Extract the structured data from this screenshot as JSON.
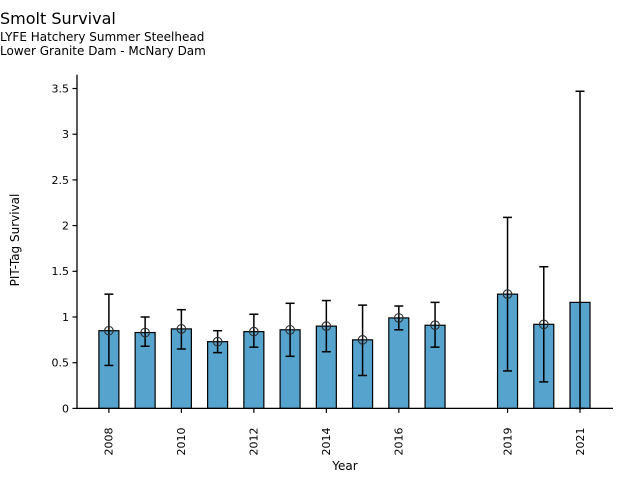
{
  "chart_data": {
    "type": "bar",
    "title": "Smolt Survival",
    "subtitles": [
      "LYFE Hatchery Summer Steelhead",
      "Lower Granite Dam - McNary Dam"
    ],
    "xlabel": "Year",
    "ylabel": "PIT-Tag Survival",
    "xlim": [
      2007.12,
      2021.91
    ],
    "ylim": [
      0,
      3.65
    ],
    "x_tick_years": [
      2008,
      2010,
      2012,
      2014,
      2016,
      2019,
      2021
    ],
    "x_tick_labels": [
      "2008",
      "2010",
      "2012",
      "2014",
      "2016",
      "2019",
      "2021"
    ],
    "y_tick_values": [
      0,
      0.5,
      1,
      1.5,
      2,
      2.5,
      3,
      3.5
    ],
    "y_tick_labels": [
      "0",
      "0.5",
      "1",
      "1.5",
      "2",
      "2.5",
      "3",
      "3.5"
    ],
    "x_tick_label_rotation_deg": 90,
    "grid": false,
    "legend": false,
    "missing_years": [
      2018
    ],
    "styles": {
      "bar_fill": "#56A3CD",
      "bar_edge": "#000000",
      "errorbar_color": "#000000",
      "marker": "open-circle",
      "marker_edge": "#2b2b2b",
      "background": "#ffffff",
      "text_color": "#000000"
    },
    "series": [
      {
        "year": 2008,
        "survival": 0.85,
        "ci_low": 0.47,
        "ci_high": 1.25,
        "marker": true
      },
      {
        "year": 2009,
        "survival": 0.83,
        "ci_low": 0.68,
        "ci_high": 1.0,
        "marker": true
      },
      {
        "year": 2010,
        "survival": 0.87,
        "ci_low": 0.65,
        "ci_high": 1.08,
        "marker": true
      },
      {
        "year": 2011,
        "survival": 0.73,
        "ci_low": 0.61,
        "ci_high": 0.85,
        "marker": true
      },
      {
        "year": 2012,
        "survival": 0.84,
        "ci_low": 0.67,
        "ci_high": 1.03,
        "marker": true
      },
      {
        "year": 2013,
        "survival": 0.86,
        "ci_low": 0.57,
        "ci_high": 1.15,
        "marker": true
      },
      {
        "year": 2014,
        "survival": 0.9,
        "ci_low": 0.62,
        "ci_high": 1.18,
        "marker": true
      },
      {
        "year": 2015,
        "survival": 0.75,
        "ci_low": 0.36,
        "ci_high": 1.13,
        "marker": true
      },
      {
        "year": 2016,
        "survival": 0.99,
        "ci_low": 0.86,
        "ci_high": 1.12,
        "marker": true
      },
      {
        "year": 2017,
        "survival": 0.91,
        "ci_low": 0.67,
        "ci_high": 1.16,
        "marker": true
      },
      {
        "year": 2019,
        "survival": 1.25,
        "ci_low": 0.41,
        "ci_high": 2.09,
        "marker": true
      },
      {
        "year": 2020,
        "survival": 0.92,
        "ci_low": 0.29,
        "ci_high": 1.55,
        "marker": true
      },
      {
        "year": 2021,
        "survival": 1.16,
        "ci_low": 0.0,
        "ci_high": 3.47,
        "marker": false
      }
    ]
  }
}
